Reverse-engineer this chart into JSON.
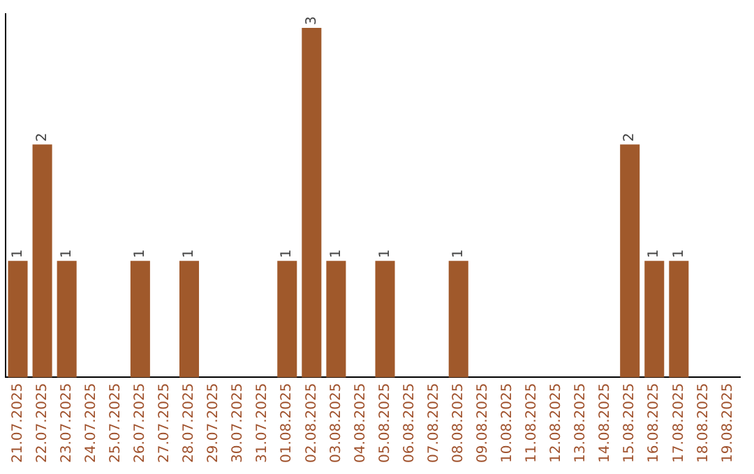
{
  "chart_data": {
    "type": "bar",
    "categories": [
      "21.07.2025",
      "22.07.2025",
      "23.07.2025",
      "24.07.2025",
      "25.07.2025",
      "26.07.2025",
      "27.07.2025",
      "28.07.2025",
      "29.07.2025",
      "30.07.2025",
      "31.07.2025",
      "01.08.2025",
      "02.08.2025",
      "03.08.2025",
      "04.08.2025",
      "05.08.2025",
      "06.08.2025",
      "07.08.2025",
      "08.08.2025",
      "09.08.2025",
      "10.08.2025",
      "11.08.2025",
      "12.08.2025",
      "13.08.2025",
      "14.08.2025",
      "15.08.2025",
      "16.08.2025",
      "17.08.2025",
      "18.08.2025",
      "19.08.2025"
    ],
    "values": [
      1,
      2,
      1,
      0,
      0,
      1,
      0,
      1,
      0,
      0,
      0,
      1,
      3,
      1,
      0,
      1,
      0,
      0,
      1,
      0,
      0,
      0,
      0,
      0,
      0,
      2,
      1,
      1,
      0,
      0
    ],
    "value_labels": [
      "1",
      "2",
      "1",
      null,
      null,
      "1",
      null,
      "1",
      null,
      null,
      null,
      "1",
      "3",
      "1",
      null,
      "1",
      null,
      null,
      "1",
      null,
      null,
      null,
      null,
      null,
      null,
      "2",
      "1",
      "1",
      null,
      null
    ],
    "color": "#a0592b",
    "ylim": [
      0,
      3.12
    ],
    "tick_labels": "x",
    "grid": false,
    "legend": false
  }
}
